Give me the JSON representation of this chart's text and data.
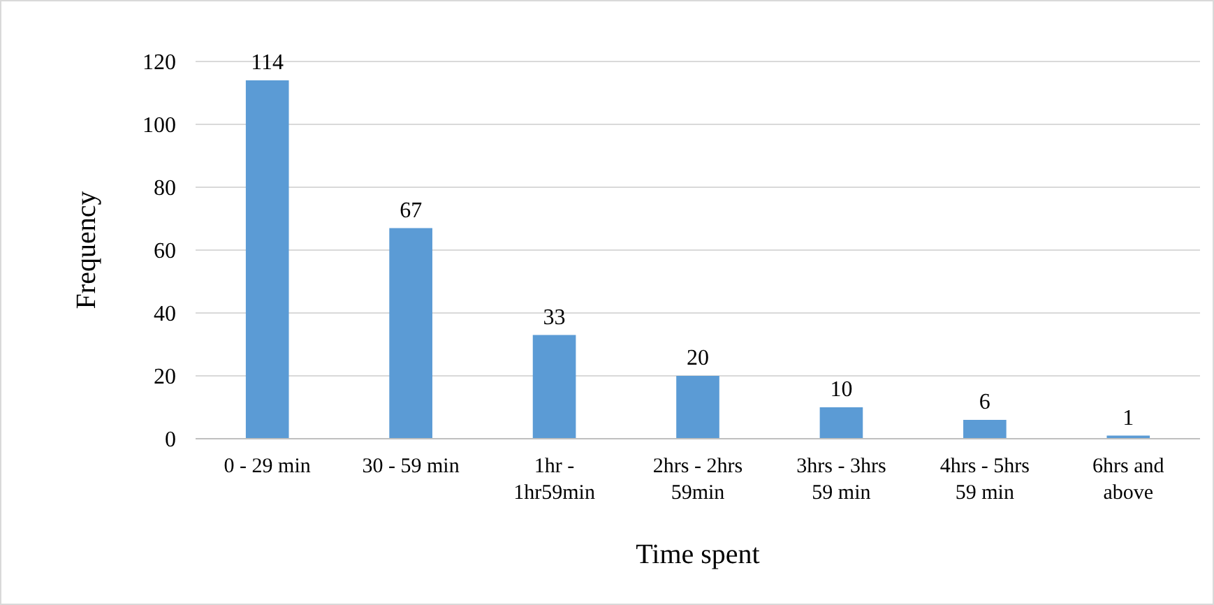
{
  "chart_data": {
    "type": "bar",
    "xlabel": "Time spent",
    "ylabel": "Frequency",
    "categories": [
      "0 - 29 min",
      "30 - 59 min",
      "1hr - 1hr59min",
      "2hrs - 2hrs 59min",
      "3hrs - 3hrs 59 min",
      "4hrs - 5hrs 59 min",
      "6hrs and above"
    ],
    "values": [
      114,
      67,
      33,
      20,
      10,
      6,
      1
    ],
    "color": "#5b9bd5",
    "ylim": [
      0,
      120
    ],
    "yticks": [
      0,
      20,
      40,
      60,
      80,
      100,
      120
    ],
    "grid": "y",
    "data_labels": true
  }
}
